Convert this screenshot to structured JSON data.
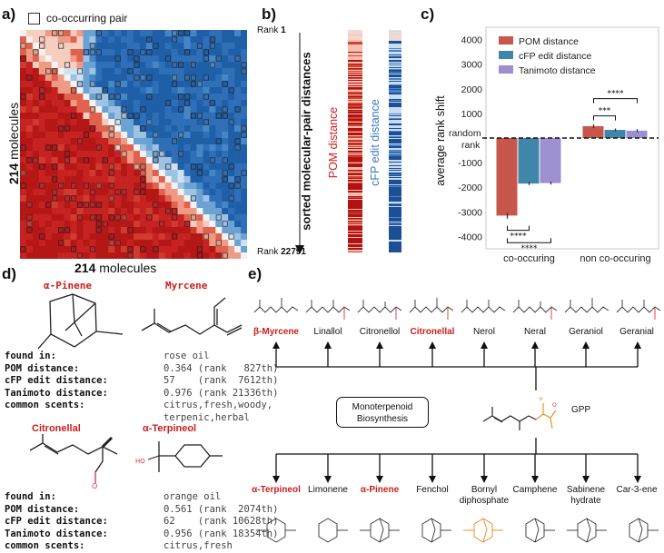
{
  "panels": {
    "a": {
      "label": "a)",
      "legend": "co-occurring pair",
      "ylabel_bold": "214",
      "ylabel_rest": " molecules",
      "xlabel_bold": "214",
      "xlabel_rest": " molecules",
      "colors": {
        "red": "#c81e1e",
        "blue": "#2f6fb8",
        "light": "#f3f3f3"
      }
    },
    "b": {
      "label": "b)",
      "rank_top_prefix": "Rank ",
      "rank_top_num": "1",
      "rank_bottom_prefix": "Rank ",
      "rank_bottom_num": "22791",
      "axis_label": "sorted molecular-pair distances",
      "strip1_label": "POM distance",
      "strip2_label": "cFP edit distance"
    },
    "c": {
      "label": "c)",
      "ylabel": "average rank shift",
      "random_label_1": "random",
      "random_label_2": "rank",
      "sig": [
        "****",
        "****",
        "***",
        "****"
      ]
    },
    "d": {
      "label": "d)",
      "mol1": {
        "name": "α-Pinene"
      },
      "mol2": {
        "name": "Myrcene"
      },
      "mol3": {
        "name": "Citronellal"
      },
      "mol4": {
        "name": "α-Terpineol"
      },
      "table1": {
        "rows": [
          {
            "key": "found in:",
            "value": "rose oil"
          },
          {
            "key": "POM distance:",
            "value": "0.364 (rank   827th)"
          },
          {
            "key": "cFP edit distance:",
            "value": "57    (rank  7612th)"
          },
          {
            "key": "Tanimoto distance:",
            "value": "0.976 (rank 21336th)"
          },
          {
            "key": "common scents:",
            "value": "citrus,fresh,woody,"
          }
        ],
        "extra_line": "terpenic,herbal"
      },
      "table2": {
        "rows": [
          {
            "key": "found in:",
            "value": "orange oil"
          },
          {
            "key": "POM distance:",
            "value": "0.561 (rank  2074th)"
          },
          {
            "key": "cFP edit distance:",
            "value": "62    (rank 10628th)"
          },
          {
            "key": "Tanimoto distance:",
            "value": "0.956 (rank 18354th)"
          },
          {
            "key": "common scents:",
            "value": "citrus,fresh"
          }
        ]
      }
    },
    "e": {
      "label": "e)",
      "top_molecules": [
        {
          "name": "β-Myrcene",
          "highlight": true
        },
        {
          "name": "Linallol",
          "highlight": false
        },
        {
          "name": "Citronellol",
          "highlight": false
        },
        {
          "name": "Citronellal",
          "highlight": true
        },
        {
          "name": "Nerol",
          "highlight": false
        },
        {
          "name": "Neral",
          "highlight": false
        },
        {
          "name": "Geraniol",
          "highlight": false
        },
        {
          "name": "Geranial",
          "highlight": false
        }
      ],
      "center_box_line1": "Monoterpenoid",
      "center_box_line2": "Biosynthesis",
      "gpp_label": "GPP",
      "bottom_molecules": [
        {
          "name": "α-Terpineol",
          "highlight": true,
          "line2": ""
        },
        {
          "name": "Limonene",
          "highlight": false,
          "line2": ""
        },
        {
          "name": "α-Pinene",
          "highlight": true,
          "line2": ""
        },
        {
          "name": "Fenchol",
          "highlight": false,
          "line2": ""
        },
        {
          "name": "Bornyl",
          "highlight": false,
          "line2": "diphosphate"
        },
        {
          "name": "Camphene",
          "highlight": false,
          "line2": ""
        },
        {
          "name": "Sabinene",
          "highlight": false,
          "line2": "hydrate"
        },
        {
          "name": "Car-3-ene",
          "highlight": false,
          "line2": ""
        }
      ]
    }
  },
  "chart_data": {
    "type": "bar",
    "categories": [
      "co-occuring",
      "non co-occuring"
    ],
    "series": [
      {
        "name": "POM distance",
        "color": "#c9564a",
        "values": [
          -3150,
          480
        ]
      },
      {
        "name": "cFP edit distance",
        "color": "#3f86a8",
        "values": [
          -1850,
          330
        ]
      },
      {
        "name": "Tanimoto distance",
        "color": "#9d8fd0",
        "values": [
          -1830,
          300
        ]
      }
    ],
    "errors": [
      [
        120,
        60,
        60
      ],
      [
        80,
        60,
        60
      ]
    ],
    "ylim": [
      -4500,
      4500
    ],
    "yticks": [
      4000,
      3000,
      2000,
      1000,
      -1000,
      -2000,
      -3000,
      -4000
    ],
    "ylabel": "average rank shift",
    "legend_position": "top-right"
  }
}
